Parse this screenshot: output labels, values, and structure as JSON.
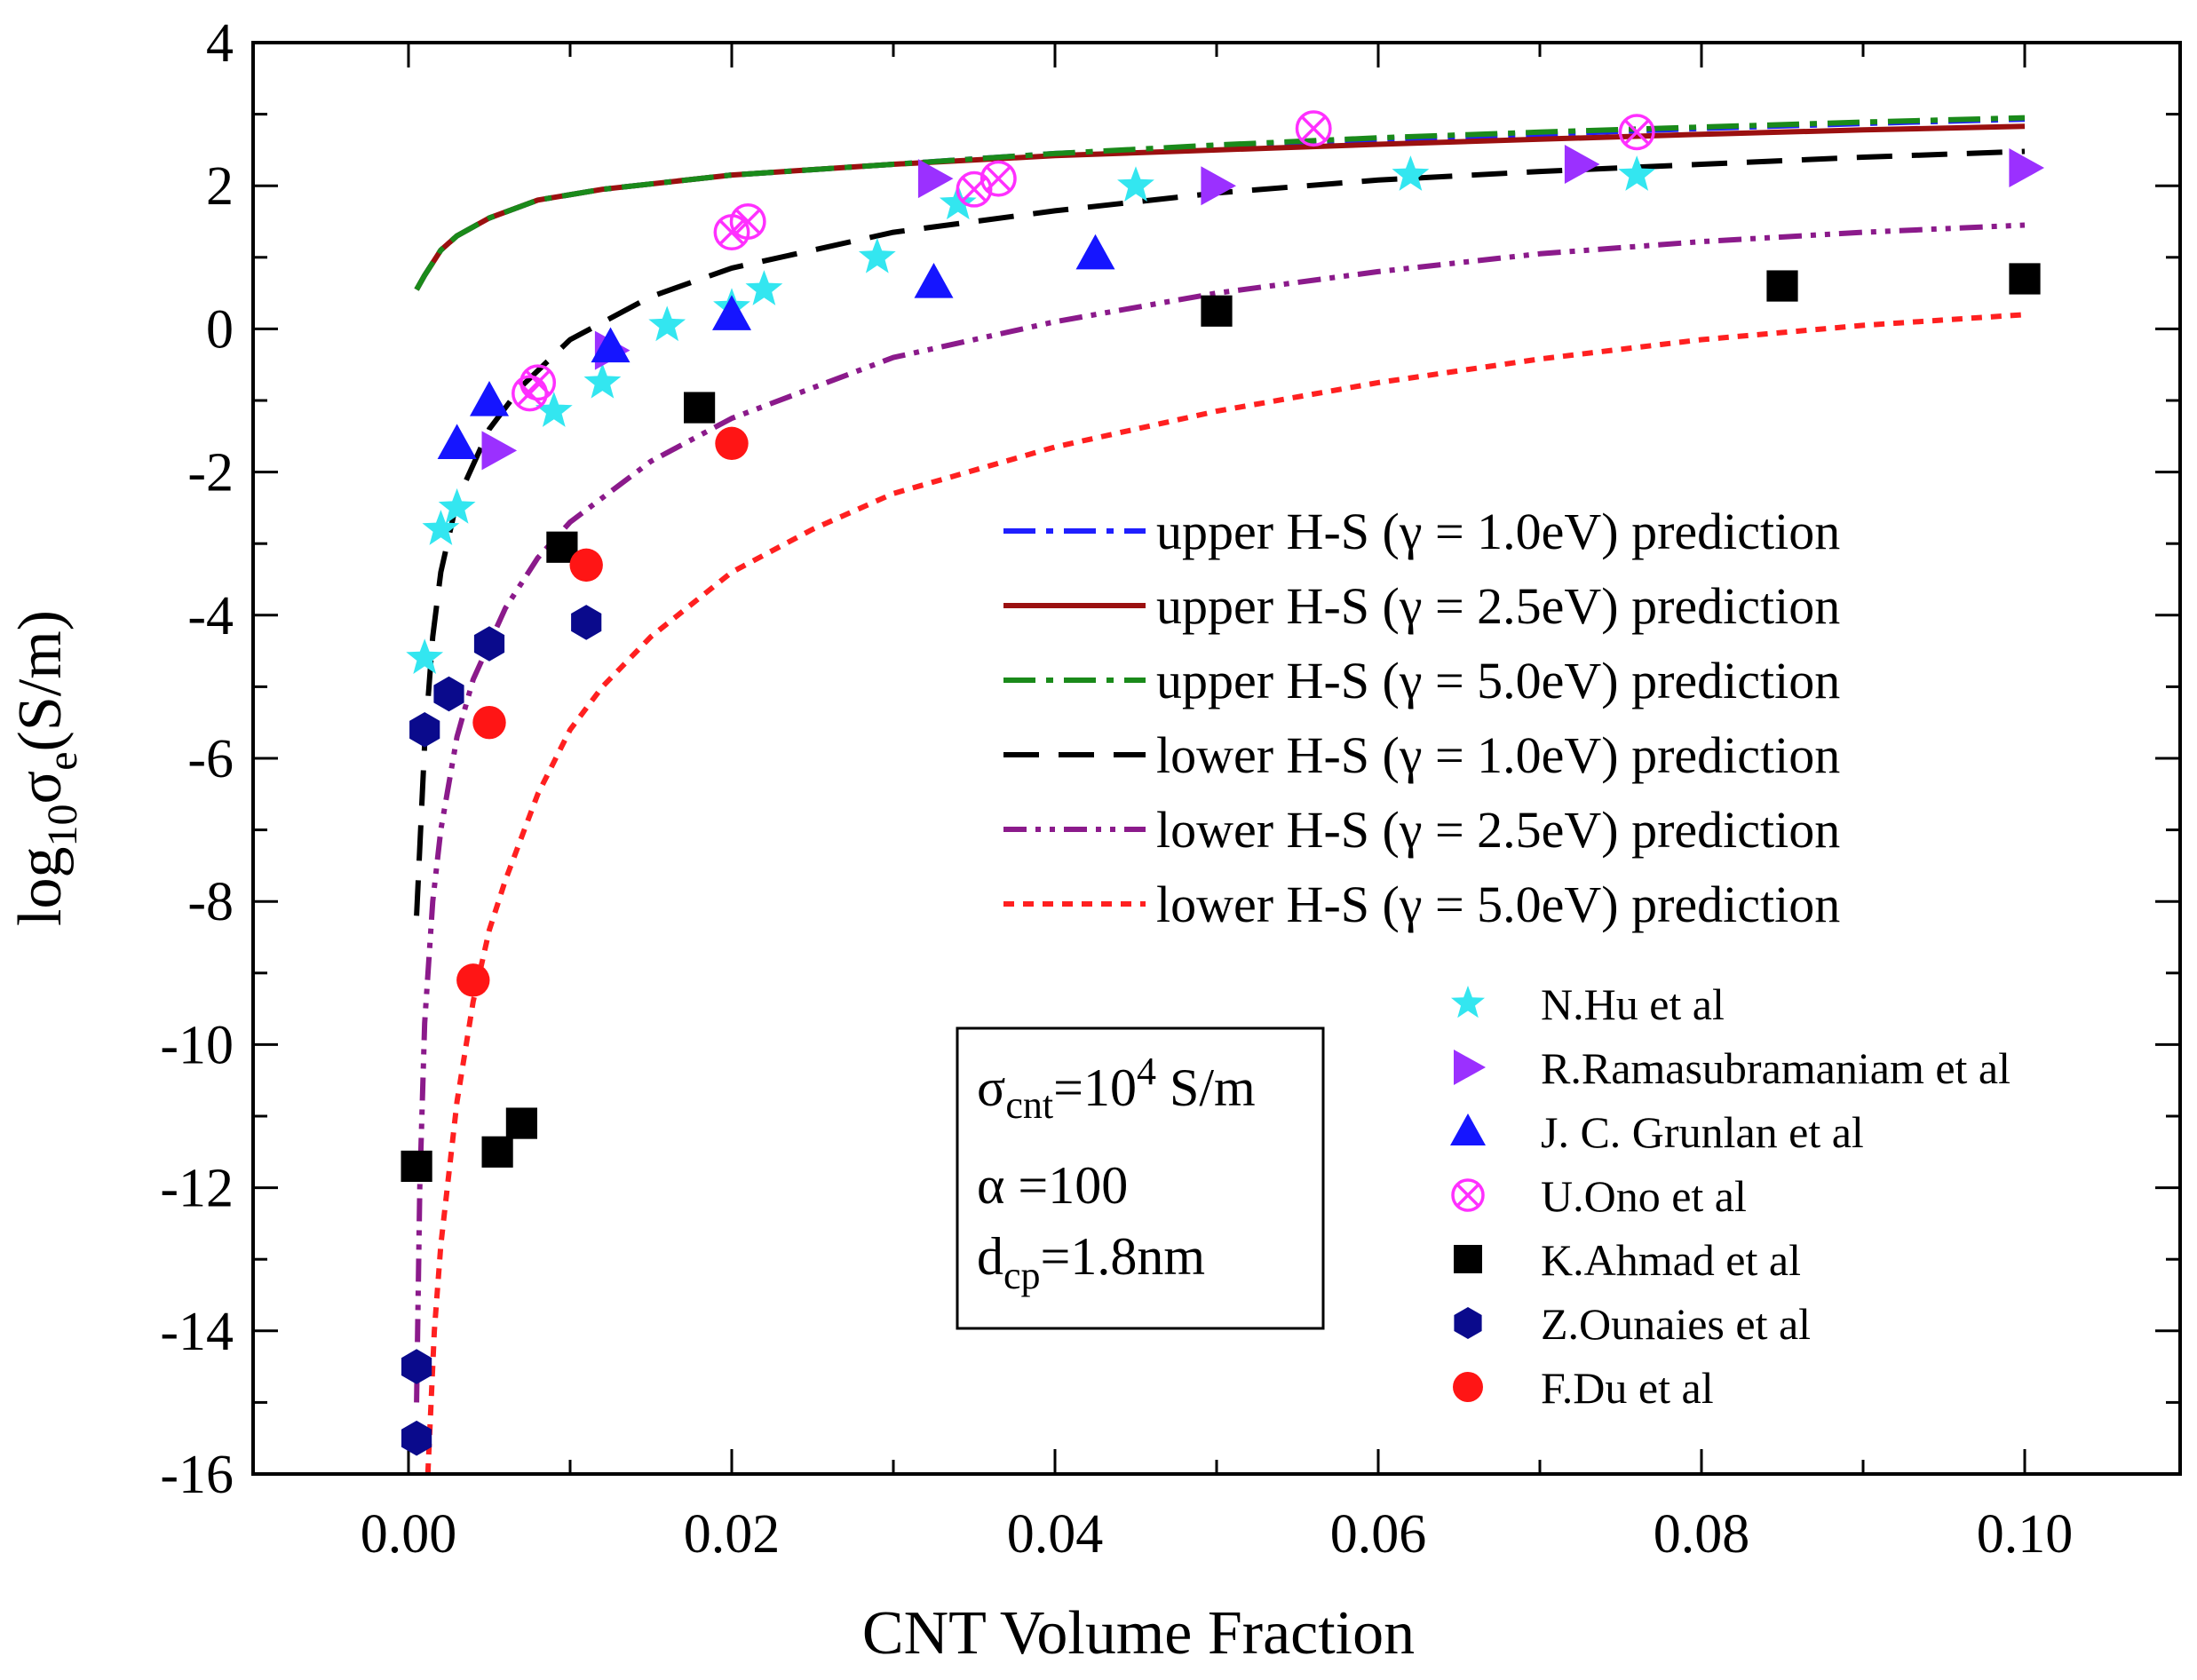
{
  "chart_data": {
    "type": "scatter",
    "title": "",
    "xlabel": "CNT Volume Fraction",
    "ylabel": "log10σe(S/m)",
    "ylabel_parts": {
      "log": "log",
      "sub10": "10",
      "sigma": "σ",
      "sube": "e",
      "unit": "(S/m)"
    },
    "xlim": [
      -0.01,
      0.11
    ],
    "ylim": [
      -16,
      4
    ],
    "x_ticks": [
      0.0,
      0.02,
      0.04,
      0.06,
      0.08,
      0.1
    ],
    "x_tick_labels": [
      "0.00",
      "0.02",
      "0.04",
      "0.06",
      "0.08",
      "0.10"
    ],
    "y_ticks": [
      -16,
      -14,
      -12,
      -10,
      -8,
      -6,
      -4,
      -2,
      0,
      2,
      4
    ],
    "y_tick_labels": [
      "-16",
      "-14",
      "-12",
      "-10",
      "-8",
      "-6",
      "-4",
      "-2",
      "0",
      "2",
      "4"
    ],
    "grid": false,
    "model_curves": [
      {
        "name": "upper H-S (γ = 1.0eV) prediction",
        "color": "#1f1fff",
        "dash": "dashdot",
        "x": [
          0.0005,
          0.001,
          0.002,
          0.003,
          0.005,
          0.008,
          0.012,
          0.02,
          0.03,
          0.04,
          0.05,
          0.06,
          0.07,
          0.08,
          0.09,
          0.1
        ],
        "y": [
          0.55,
          0.75,
          1.1,
          1.3,
          1.55,
          1.8,
          1.95,
          2.15,
          2.3,
          2.45,
          2.55,
          2.65,
          2.72,
          2.8,
          2.87,
          2.93
        ]
      },
      {
        "name": "upper H-S (γ = 2.5eV) prediction",
        "color": "#9b1010",
        "dash": "solid",
        "x": [
          0.0005,
          0.001,
          0.002,
          0.003,
          0.005,
          0.008,
          0.012,
          0.02,
          0.03,
          0.04,
          0.05,
          0.06,
          0.07,
          0.08,
          0.09,
          0.1
        ],
        "y": [
          0.55,
          0.75,
          1.1,
          1.3,
          1.55,
          1.8,
          1.95,
          2.15,
          2.3,
          2.42,
          2.5,
          2.58,
          2.65,
          2.72,
          2.78,
          2.83
        ]
      },
      {
        "name": "upper H-S (γ = 5.0eV) prediction",
        "color": "#1a8a1a",
        "dash": "dashdot",
        "x": [
          0.0005,
          0.001,
          0.002,
          0.003,
          0.005,
          0.008,
          0.012,
          0.02,
          0.03,
          0.04,
          0.05,
          0.06,
          0.07,
          0.08,
          0.09,
          0.1
        ],
        "y": [
          0.55,
          0.75,
          1.1,
          1.3,
          1.55,
          1.8,
          1.95,
          2.15,
          2.3,
          2.45,
          2.57,
          2.67,
          2.75,
          2.82,
          2.89,
          2.95
        ]
      },
      {
        "name": "lower H-S (γ = 1.0eV) prediction",
        "color": "#000000",
        "dash": "dashed",
        "x": [
          0.0005,
          0.001,
          0.0015,
          0.002,
          0.003,
          0.005,
          0.007,
          0.01,
          0.015,
          0.02,
          0.03,
          0.04,
          0.05,
          0.06,
          0.07,
          0.08,
          0.09,
          0.1
        ],
        "y": [
          -8.2,
          -5.8,
          -4.3,
          -3.4,
          -2.4,
          -1.4,
          -0.8,
          -0.15,
          0.45,
          0.85,
          1.35,
          1.65,
          1.9,
          2.08,
          2.2,
          2.3,
          2.4,
          2.48
        ]
      },
      {
        "name": "lower H-S (γ = 2.5eV) prediction",
        "color": "#8b1a8b",
        "dash": "dashdotdot",
        "x": [
          0.0005,
          0.0007,
          0.001,
          0.0015,
          0.002,
          0.003,
          0.004,
          0.006,
          0.008,
          0.01,
          0.015,
          0.02,
          0.03,
          0.04,
          0.05,
          0.06,
          0.07,
          0.08,
          0.09,
          0.1
        ],
        "y": [
          -15.0,
          -12.0,
          -9.7,
          -8.0,
          -7.0,
          -5.7,
          -4.9,
          -3.9,
          -3.2,
          -2.7,
          -1.85,
          -1.25,
          -0.4,
          0.1,
          0.5,
          0.8,
          1.05,
          1.22,
          1.35,
          1.45
        ]
      },
      {
        "name": "lower H-S (γ = 5.0eV) prediction",
        "color": "#ff2020",
        "dash": "dotted",
        "x": [
          0.0012,
          0.0016,
          0.002,
          0.003,
          0.004,
          0.005,
          0.006,
          0.008,
          0.01,
          0.012,
          0.015,
          0.02,
          0.025,
          0.03,
          0.04,
          0.05,
          0.06,
          0.07,
          0.08,
          0.09,
          0.1
        ],
        "y": [
          -16.0,
          -14.0,
          -12.8,
          -10.8,
          -9.4,
          -8.4,
          -7.7,
          -6.5,
          -5.6,
          -5.0,
          -4.3,
          -3.4,
          -2.8,
          -2.3,
          -1.65,
          -1.15,
          -0.75,
          -0.42,
          -0.15,
          0.05,
          0.2
        ]
      }
    ],
    "experimental_series": [
      {
        "name": "N.Hu et al",
        "marker": "star",
        "color": "#33e6f0",
        "x": [
          0.001,
          0.002,
          0.003,
          0.009,
          0.012,
          0.016,
          0.02,
          0.022,
          0.029,
          0.034,
          0.045,
          0.062,
          0.076
        ],
        "y": [
          -4.6,
          -2.8,
          -2.5,
          -1.15,
          -0.75,
          0.05,
          0.3,
          0.55,
          1.0,
          1.75,
          2.0,
          2.15,
          2.15
        ]
      },
      {
        "name": "R.Ramasubramaniam et al",
        "marker": "triangle-right",
        "color": "#9b30ff",
        "x": [
          0.0055,
          0.0125,
          0.0325,
          0.05,
          0.0725,
          0.1
        ],
        "y": [
          -1.7,
          -0.3,
          2.1,
          2.0,
          2.3,
          2.25
        ]
      },
      {
        "name": "J. C. Grunlan et al",
        "marker": "triangle-up",
        "color": "#1515ff",
        "x": [
          0.003,
          0.005,
          0.0125,
          0.02,
          0.0325,
          0.0425
        ],
        "y": [
          -1.6,
          -1.0,
          -0.25,
          0.2,
          0.65,
          1.05
        ]
      },
      {
        "name": "U.Ono et al",
        "marker": "circle-x",
        "color": "#ff30ff",
        "x": [
          0.0075,
          0.008,
          0.02,
          0.021,
          0.035,
          0.0365,
          0.056,
          0.076
        ],
        "y": [
          -0.9,
          -0.75,
          1.35,
          1.5,
          1.95,
          2.1,
          2.8,
          2.75
        ]
      },
      {
        "name": "K.Ahmad et al",
        "marker": "square",
        "color": "#000000",
        "x": [
          0.0005,
          0.0055,
          0.007,
          0.0095,
          0.018,
          0.05,
          0.085,
          0.1
        ],
        "y": [
          -11.7,
          -11.5,
          -11.1,
          -3.05,
          -1.1,
          0.25,
          0.6,
          0.7
        ]
      },
      {
        "name": "Z.Ounaies et al",
        "marker": "hexagon",
        "color": "#0a0a8c",
        "x": [
          0.0005,
          0.0005,
          0.001,
          0.0025,
          0.005,
          0.011
        ],
        "y": [
          -15.5,
          -14.5,
          -5.6,
          -5.1,
          -4.4,
          -4.1
        ]
      },
      {
        "name": "F.Du et al",
        "marker": "circle",
        "color": "#ff1515",
        "x": [
          0.004,
          0.005,
          0.011,
          0.02
        ],
        "y": [
          -9.1,
          -5.5,
          -3.3,
          -1.6
        ]
      }
    ],
    "legend_position": "right",
    "annotation": {
      "sigma": "σ",
      "cnt": "cnt",
      "eq1": "=10",
      "exp4": "4",
      "unit1": " S/m",
      "alpha_line": "α =100",
      "d": "d",
      "cp": "cp",
      "eq3": "=1.8nm"
    }
  }
}
